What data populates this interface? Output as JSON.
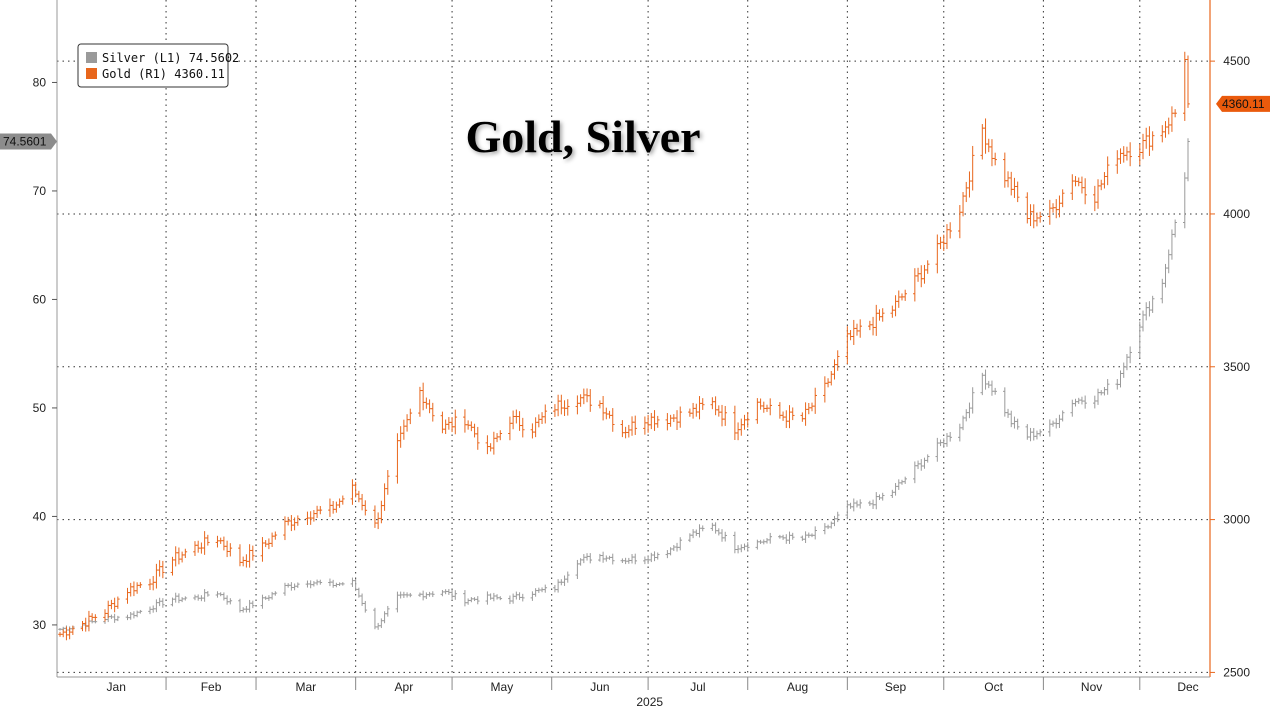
{
  "chart_data": {
    "type": "line",
    "title": "Gold, Silver",
    "x_year_label": "2025",
    "months": [
      "Jan",
      "Feb",
      "Mar",
      "Apr",
      "May",
      "Jun",
      "Jul",
      "Aug",
      "Sep",
      "Oct",
      "Nov",
      "Dec"
    ],
    "x_range": [
      "2024-12-30",
      "2025-12-16"
    ],
    "left_axis": {
      "ticks": [
        30,
        40,
        50,
        60,
        70,
        80
      ],
      "range": [
        25.2,
        87.6
      ]
    },
    "right_axis": {
      "ticks": [
        2500,
        3000,
        3500,
        4000,
        4500
      ],
      "range": [
        2485,
        4700
      ]
    },
    "grid": true,
    "legend_position": "top-left",
    "colors": {
      "silver": "#9a9a9a",
      "gold": "#e8661c",
      "silver_tag": "#8c8c8c",
      "gold_tag": "#ea5a0c"
    },
    "series": [
      {
        "name": "Silver (L1)",
        "last_value": "74.5602",
        "axis_tag": "74.5601",
        "axis": "left",
        "points": [
          [
            "2024-12-30",
            29.6
          ],
          [
            "2025-01-06",
            30.0
          ],
          [
            "2025-01-13",
            30.6
          ],
          [
            "2025-01-20",
            30.8
          ],
          [
            "2025-01-27",
            31.6
          ],
          [
            "2025-02-03",
            32.4
          ],
          [
            "2025-02-10",
            32.5
          ],
          [
            "2025-02-17",
            33.0
          ],
          [
            "2025-02-24",
            31.4
          ],
          [
            "2025-03-03",
            32.3
          ],
          [
            "2025-03-10",
            33.5
          ],
          [
            "2025-03-17",
            34.0
          ],
          [
            "2025-03-24",
            33.7
          ],
          [
            "2025-03-31",
            33.9
          ],
          [
            "2025-04-04",
            31.5
          ],
          [
            "2025-04-07",
            29.7
          ],
          [
            "2025-04-14",
            32.5
          ],
          [
            "2025-04-21",
            32.8
          ],
          [
            "2025-04-28",
            33.1
          ],
          [
            "2025-05-05",
            32.3
          ],
          [
            "2025-05-12",
            32.5
          ],
          [
            "2025-05-19",
            32.4
          ],
          [
            "2025-05-26",
            33.0
          ],
          [
            "2025-06-02",
            33.4
          ],
          [
            "2025-06-09",
            35.9
          ],
          [
            "2025-06-16",
            36.4
          ],
          [
            "2025-06-23",
            36.0
          ],
          [
            "2025-06-30",
            36.2
          ],
          [
            "2025-07-07",
            36.8
          ],
          [
            "2025-07-14",
            38.3
          ],
          [
            "2025-07-21",
            39.1
          ],
          [
            "2025-07-28",
            37.2
          ],
          [
            "2025-08-04",
            37.6
          ],
          [
            "2025-08-11",
            38.1
          ],
          [
            "2025-08-18",
            37.9
          ],
          [
            "2025-08-25",
            38.8
          ],
          [
            "2025-09-01",
            40.8
          ],
          [
            "2025-09-08",
            41.2
          ],
          [
            "2025-09-15",
            42.3
          ],
          [
            "2025-09-22",
            44.4
          ],
          [
            "2025-09-29",
            46.4
          ],
          [
            "2025-10-06",
            48.4
          ],
          [
            "2025-10-13",
            53.0
          ],
          [
            "2025-10-17",
            51.4
          ],
          [
            "2025-10-22",
            48.7
          ],
          [
            "2025-10-27",
            47.4
          ],
          [
            "2025-11-03",
            48.2
          ],
          [
            "2025-11-10",
            50.6
          ],
          [
            "2025-11-17",
            51.0
          ],
          [
            "2025-11-24",
            52.5
          ],
          [
            "2025-12-01",
            57.8
          ],
          [
            "2025-12-08",
            61.7
          ],
          [
            "2025-12-12",
            67.1
          ],
          [
            "2025-12-15",
            71.5
          ],
          [
            "2025-12-16",
            74.56
          ]
        ]
      },
      {
        "name": "Gold (R1)",
        "last_value": "4360.11",
        "axis_tag": "4360.11",
        "axis": "right",
        "points": [
          [
            "2024-12-30",
            2625
          ],
          [
            "2025-01-06",
            2660
          ],
          [
            "2025-01-13",
            2700
          ],
          [
            "2025-01-20",
            2770
          ],
          [
            "2025-01-27",
            2800
          ],
          [
            "2025-02-03",
            2870
          ],
          [
            "2025-02-10",
            2910
          ],
          [
            "2025-02-17",
            2940
          ],
          [
            "2025-02-24",
            2865
          ],
          [
            "2025-03-03",
            2910
          ],
          [
            "2025-03-10",
            2985
          ],
          [
            "2025-03-17",
            3020
          ],
          [
            "2025-03-24",
            3030
          ],
          [
            "2025-03-31",
            3100
          ],
          [
            "2025-04-04",
            3040
          ],
          [
            "2025-04-07",
            2980
          ],
          [
            "2025-04-14",
            3240
          ],
          [
            "2025-04-21",
            3420
          ],
          [
            "2025-04-28",
            3300
          ],
          [
            "2025-05-05",
            3330
          ],
          [
            "2025-05-12",
            3220
          ],
          [
            "2025-05-19",
            3330
          ],
          [
            "2025-05-26",
            3300
          ],
          [
            "2025-06-02",
            3370
          ],
          [
            "2025-06-09",
            3400
          ],
          [
            "2025-06-16",
            3380
          ],
          [
            "2025-06-23",
            3290
          ],
          [
            "2025-06-30",
            3330
          ],
          [
            "2025-07-07",
            3330
          ],
          [
            "2025-07-14",
            3350
          ],
          [
            "2025-07-21",
            3380
          ],
          [
            "2025-07-28",
            3300
          ],
          [
            "2025-08-04",
            3380
          ],
          [
            "2025-08-11",
            3340
          ],
          [
            "2025-08-18",
            3330
          ],
          [
            "2025-08-25",
            3430
          ],
          [
            "2025-09-01",
            3590
          ],
          [
            "2025-09-08",
            3640
          ],
          [
            "2025-09-15",
            3690
          ],
          [
            "2025-09-22",
            3780
          ],
          [
            "2025-09-29",
            3880
          ],
          [
            "2025-10-06",
            4020
          ],
          [
            "2025-10-13",
            4280
          ],
          [
            "2025-10-17",
            4170
          ],
          [
            "2025-10-22",
            4090
          ],
          [
            "2025-10-27",
            3990
          ],
          [
            "2025-11-03",
            4000
          ],
          [
            "2025-11-10",
            4120
          ],
          [
            "2025-11-17",
            4060
          ],
          [
            "2025-11-24",
            4200
          ],
          [
            "2025-12-01",
            4220
          ],
          [
            "2025-12-08",
            4280
          ],
          [
            "2025-12-12",
            4330
          ],
          [
            "2025-12-15",
            4520
          ],
          [
            "2025-12-16",
            4360.11
          ]
        ]
      }
    ]
  }
}
